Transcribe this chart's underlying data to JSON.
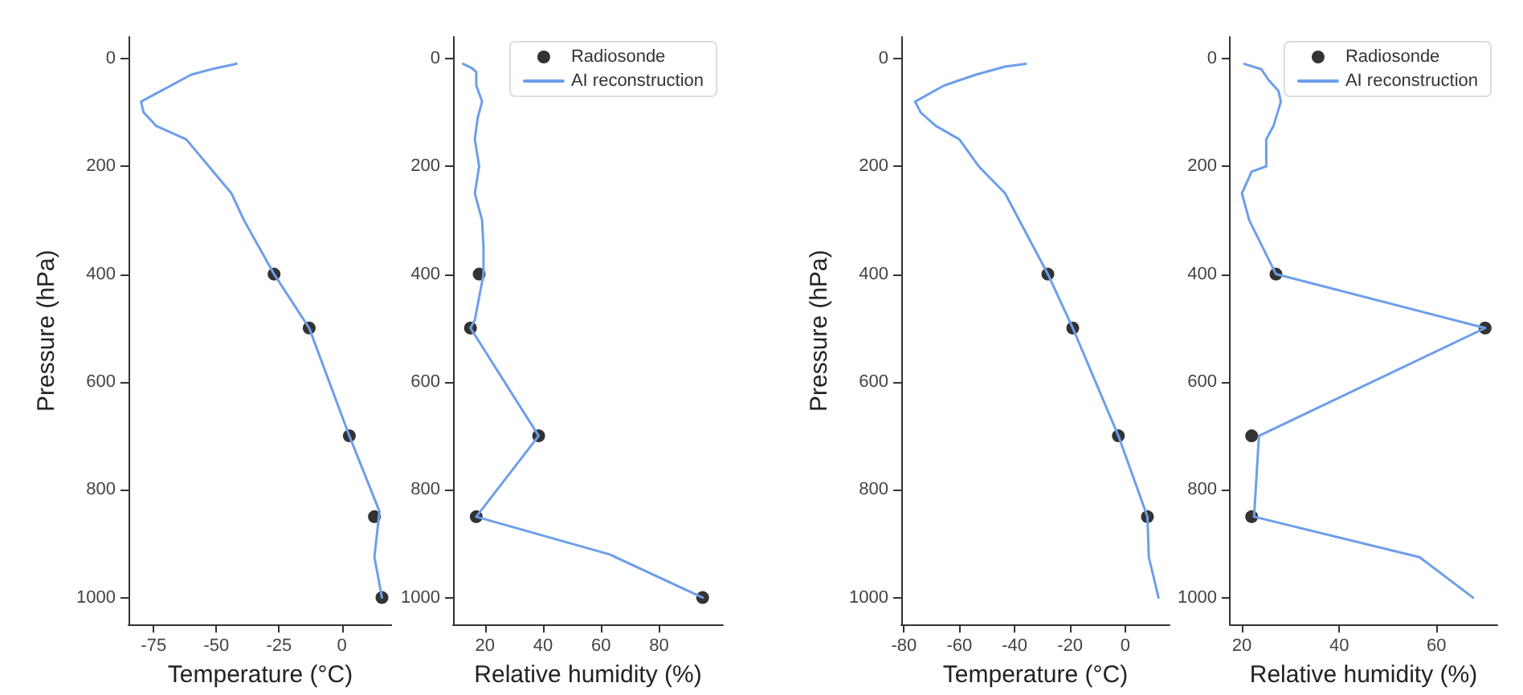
{
  "chart_data": [
    {
      "type": "line",
      "xlabel": "Temperature (°C)",
      "ylabel": "Pressure (hPa)",
      "xlim": [
        -85,
        20
      ],
      "xticks": [
        -75,
        -50,
        -25,
        0
      ],
      "ylim": [
        1050,
        -40
      ],
      "yticks": [
        0,
        200,
        400,
        600,
        800,
        1000
      ],
      "series": [
        {
          "type": "scatter",
          "color": "#000000",
          "x": [
            -27,
            -13,
            3,
            13,
            16
          ],
          "values": [
            400,
            500,
            700,
            850,
            1000
          ]
        },
        {
          "color": "#6d9eeb",
          "x": [
            -42,
            -52,
            -60,
            -76,
            -80,
            -79,
            -74,
            -62,
            -53,
            -44,
            -39,
            -27,
            -13,
            3,
            15,
            13,
            16
          ],
          "values": [
            10,
            20,
            30,
            70,
            80,
            100,
            125,
            150,
            200,
            250,
            300,
            400,
            500,
            700,
            840,
            925,
            1000
          ]
        }
      ]
    },
    {
      "type": "line",
      "xlabel": "Relative humidity (%)",
      "xlim": [
        9,
        102
      ],
      "xticks": [
        20,
        40,
        60,
        80
      ],
      "ylim": [
        1050,
        -40
      ],
      "yticks": [
        0,
        200,
        400,
        600,
        800,
        1000
      ],
      "legend": "top right",
      "series": [
        {
          "name": "Radiosonde",
          "type": "scatter",
          "color": "#000000",
          "x": [
            18,
            15,
            38.5,
            17,
            95
          ],
          "values": [
            400,
            500,
            700,
            850,
            1000
          ]
        },
        {
          "name": "AI reconstruction",
          "color": "#6d9eeb",
          "x": [
            12.5,
            15.5,
            17,
            17,
            19,
            17.5,
            16.5,
            18,
            16.5,
            19,
            19.5,
            19.5,
            16.5,
            15,
            38.5,
            17,
            63,
            95
          ],
          "values": [
            10,
            18,
            25,
            50,
            80,
            110,
            150,
            200,
            250,
            300,
            350,
            400,
            485,
            500,
            700,
            850,
            920,
            1000
          ]
        }
      ]
    },
    {
      "type": "line",
      "xlabel": "Temperature (°C)",
      "ylabel": "Pressure (hPa)",
      "xlim": [
        -81,
        16
      ],
      "xticks": [
        -80,
        -60,
        -40,
        -20,
        0
      ],
      "ylim": [
        1050,
        -40
      ],
      "yticks": [
        0,
        200,
        400,
        600,
        800,
        1000
      ],
      "series": [
        {
          "type": "scatter",
          "color": "#000000",
          "x": [
            -28,
            -19,
            -2.5,
            8
          ],
          "values": [
            400,
            500,
            700,
            850
          ]
        },
        {
          "color": "#6d9eeb",
          "x": [
            -36,
            -43.5,
            -54,
            -65.5,
            -76,
            -74,
            -68.5,
            -60,
            -53,
            -43.5,
            -28,
            -19,
            -2.5,
            8,
            8.5,
            12
          ],
          "values": [
            10,
            15,
            30,
            50,
            80,
            100,
            125,
            150,
            200,
            250,
            400,
            500,
            700,
            850,
            925,
            1000
          ]
        }
      ]
    },
    {
      "type": "line",
      "xlabel": "Relative humidity (%)",
      "xlim": [
        17.5,
        72.5
      ],
      "xticks": [
        20,
        40,
        60
      ],
      "ylim": [
        1050,
        -40
      ],
      "yticks": [
        0,
        200,
        400,
        600,
        800,
        1000
      ],
      "legend": "top right",
      "series": [
        {
          "name": "Radiosonde",
          "type": "scatter",
          "color": "#000000",
          "x": [
            27,
            70,
            22,
            22
          ],
          "values": [
            400,
            500,
            700,
            850
          ]
        },
        {
          "name": "AI reconstruction",
          "color": "#6d9eeb",
          "x": [
            20.5,
            24,
            25.5,
            27.5,
            28,
            26.5,
            25,
            25,
            22,
            20,
            21.5,
            27,
            70,
            23.5,
            22.5,
            56.5,
            67.5
          ],
          "values": [
            10,
            20,
            40,
            60,
            80,
            125,
            150,
            200,
            210,
            250,
            300,
            400,
            500,
            700,
            850,
            925,
            1000
          ]
        }
      ]
    }
  ]
}
